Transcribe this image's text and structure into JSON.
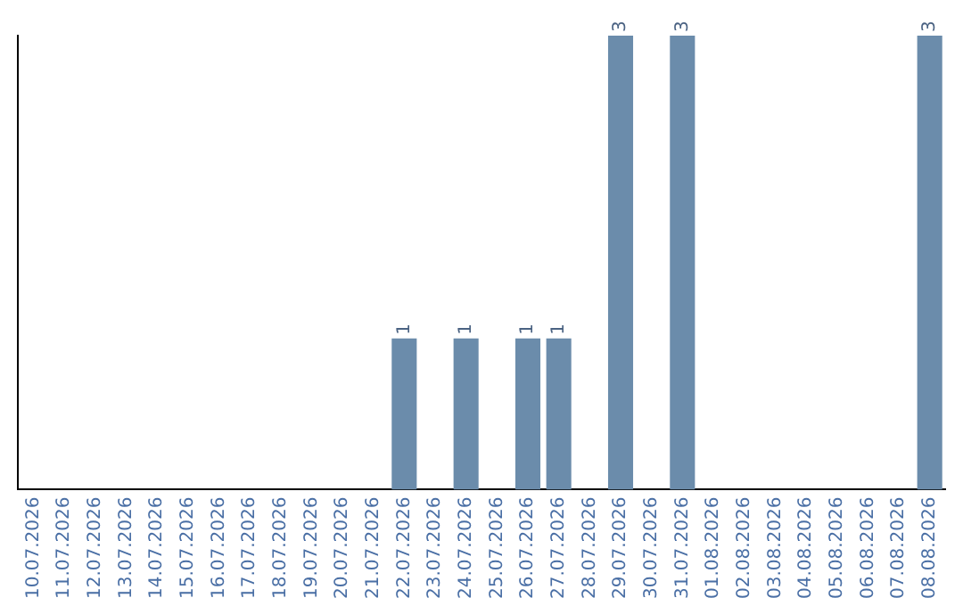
{
  "chart_data": {
    "type": "bar",
    "categories": [
      "10.07.2026",
      "11.07.2026",
      "12.07.2026",
      "13.07.2026",
      "14.07.2026",
      "15.07.2026",
      "16.07.2026",
      "17.07.2026",
      "18.07.2026",
      "19.07.2026",
      "20.07.2026",
      "21.07.2026",
      "22.07.2026",
      "23.07.2026",
      "24.07.2026",
      "25.07.2026",
      "26.07.2026",
      "27.07.2026",
      "28.07.2026",
      "29.07.2026",
      "30.07.2026",
      "31.07.2026",
      "01.08.2026",
      "02.08.2026",
      "03.08.2026",
      "04.08.2026",
      "05.08.2026",
      "06.08.2026",
      "07.08.2026",
      "08.08.2026"
    ],
    "values": [
      null,
      null,
      null,
      null,
      null,
      null,
      null,
      null,
      null,
      null,
      null,
      null,
      1,
      null,
      1,
      null,
      1,
      1,
      null,
      3,
      null,
      3,
      null,
      null,
      null,
      null,
      null,
      null,
      null,
      3
    ],
    "data_labels": true,
    "color": "#6b8cab",
    "tick_labels": "x",
    "grid": false,
    "legend": false
  }
}
